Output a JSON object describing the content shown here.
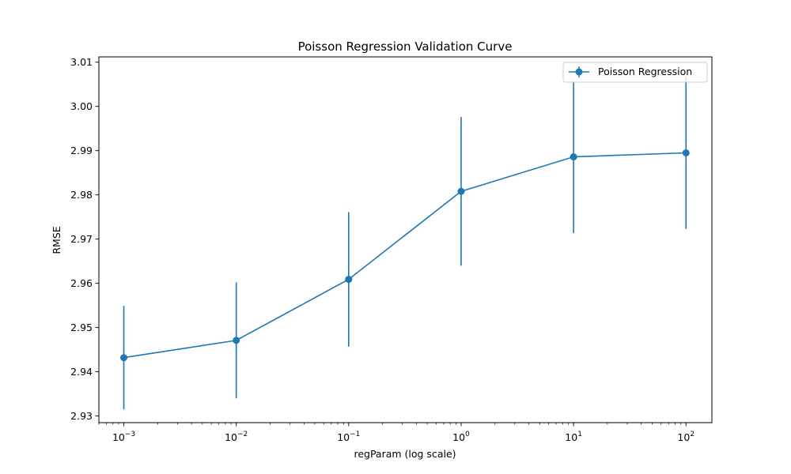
{
  "chart_data": {
    "type": "line",
    "title": "Poisson Regression Validation Curve",
    "xlabel": "regParam (log scale)",
    "ylabel": "RMSE",
    "xscale": "log",
    "xlim": [
      0.0006,
      170
    ],
    "ylim": [
      2.9285,
      3.0112
    ],
    "x_ticks": [
      {
        "value": 0.001,
        "base": "10",
        "exp": "−3"
      },
      {
        "value": 0.01,
        "base": "10",
        "exp": "−2"
      },
      {
        "value": 0.1,
        "base": "10",
        "exp": "−1"
      },
      {
        "value": 1,
        "base": "10",
        "exp": "0"
      },
      {
        "value": 10,
        "base": "10",
        "exp": "1"
      },
      {
        "value": 100,
        "base": "10",
        "exp": "2"
      }
    ],
    "y_ticks": [
      2.93,
      2.94,
      2.95,
      2.96,
      2.97,
      2.98,
      2.99,
      3.0,
      3.01
    ],
    "y_tick_labels": [
      "2.93",
      "2.94",
      "2.95",
      "2.96",
      "2.97",
      "2.98",
      "2.99",
      "3.00",
      "3.01"
    ],
    "legend_position": "top-right",
    "grid": false,
    "series": [
      {
        "name": "Poisson Regression",
        "color": "#1f77b4",
        "x": [
          0.001,
          0.01,
          0.1,
          1,
          10,
          100
        ],
        "y": [
          2.9432,
          2.9471,
          2.9609,
          2.9808,
          2.9886,
          2.9895
        ],
        "yerr": [
          0.0117,
          0.0131,
          0.0152,
          0.0168,
          0.0172,
          0.0172
        ]
      }
    ]
  }
}
